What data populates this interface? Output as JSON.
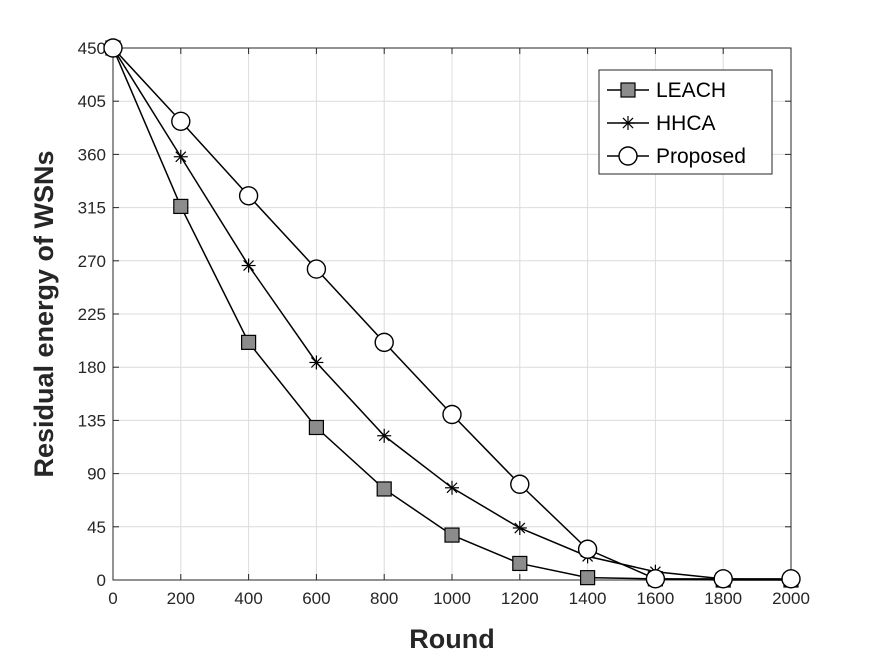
{
  "chart_data": {
    "type": "line",
    "xlabel": "Round",
    "ylabel": "Residual energy of WSNs",
    "xlim": [
      0,
      2000
    ],
    "ylim": [
      0,
      450
    ],
    "xticks": [
      "0",
      "200",
      "400",
      "600",
      "800",
      "1000",
      "1200",
      "1400",
      "1600",
      "1800",
      "2000"
    ],
    "yticks": [
      "0",
      "45",
      "90",
      "135",
      "180",
      "225",
      "270",
      "315",
      "360",
      "405",
      "450"
    ],
    "grid": true,
    "legend_position": "top-right",
    "x": [
      0,
      200,
      400,
      600,
      800,
      1000,
      1200,
      1400,
      1600,
      1800,
      2000
    ],
    "series": [
      {
        "name": "LEACH",
        "marker": "square",
        "values": [
          450,
          316,
          201,
          129,
          77,
          38,
          14,
          2,
          1,
          0,
          0
        ]
      },
      {
        "name": "HHCA",
        "marker": "asterisk",
        "values": [
          450,
          358,
          266,
          184,
          122,
          78,
          44,
          20,
          7,
          1,
          0
        ]
      },
      {
        "name": "Proposed",
        "marker": "circle",
        "values": [
          450,
          388,
          325,
          263,
          201,
          140,
          81,
          26,
          1,
          1,
          1
        ]
      }
    ]
  }
}
